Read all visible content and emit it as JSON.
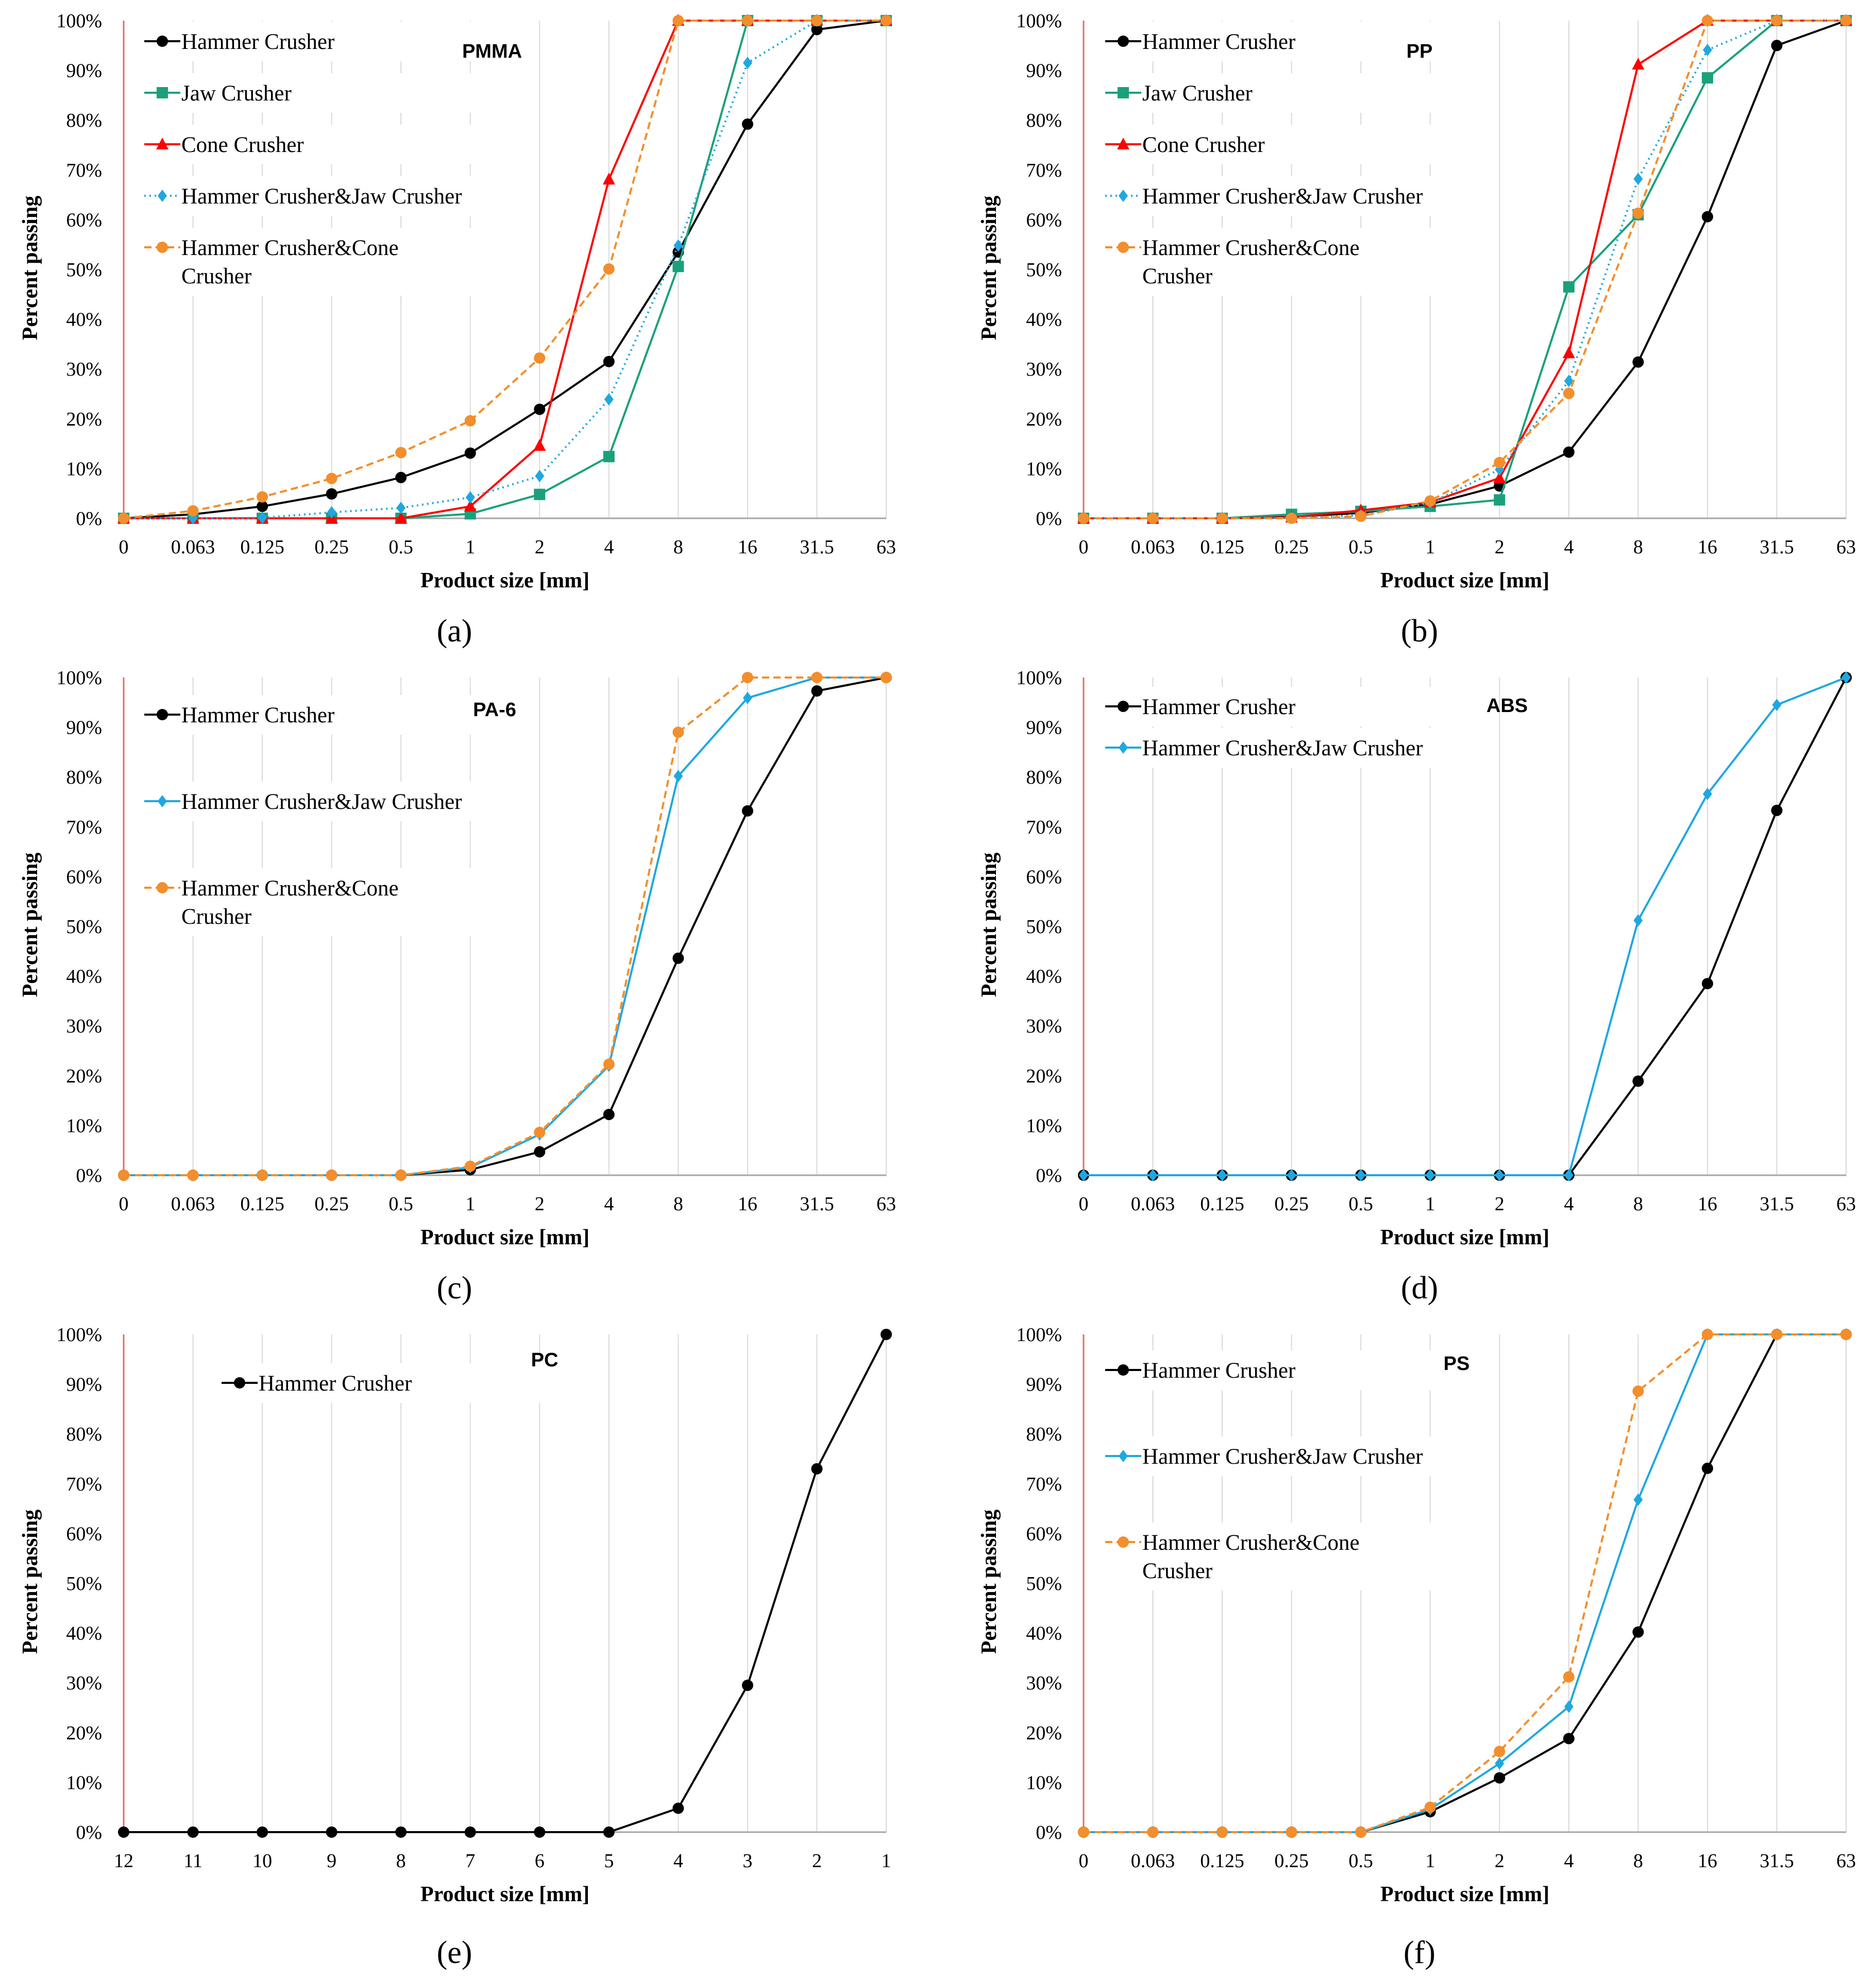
{
  "chart_data": [
    {
      "type": "line",
      "title": "PMMA",
      "caption": "(a)",
      "xlabel": "Product size [mm]",
      "ylabel": "Percent passing",
      "ylim": [
        0,
        100
      ],
      "ytick_labels": [
        "0%",
        "10%",
        "20%",
        "30%",
        "40%",
        "50%",
        "60%",
        "70%",
        "80%",
        "90%",
        "100%"
      ],
      "categories": [
        "0",
        "0.063",
        "0.125",
        "0.25",
        "0.5",
        "1",
        "2",
        "4",
        "8",
        "16",
        "31.5",
        "63"
      ],
      "series": [
        {
          "name": "Hammer Crusher",
          "color": "#000000",
          "marker": "circle",
          "dash": "solid",
          "values": [
            0,
            0.8,
            2.4,
            4.9,
            8.2,
            13.1,
            21.9,
            31.5,
            53.5,
            79.2,
            98.2,
            100
          ]
        },
        {
          "name": "Jaw Crusher",
          "color": "#1aa07a",
          "marker": "square",
          "dash": "solid",
          "values": [
            0,
            0,
            0,
            0,
            0,
            0.9,
            4.8,
            12.4,
            50.6,
            100,
            100,
            100
          ]
        },
        {
          "name": "Cone Crusher",
          "color": "#ff0000",
          "marker": "triangle",
          "dash": "solid",
          "values": [
            0,
            0,
            0,
            0,
            0,
            2.4,
            14.6,
            68.1,
            100,
            100,
            100,
            100
          ]
        },
        {
          "name": "Hammer Crusher&Jaw Crusher",
          "color": "#1fa8e0",
          "marker": "diamond",
          "dash": "dot",
          "values": [
            0,
            0,
            0.1,
            1.2,
            2.1,
            4.2,
            8.5,
            23.9,
            54.8,
            91.5,
            100,
            100
          ]
        },
        {
          "name": "Hammer Crusher&Cone Crusher",
          "color": "#f28e2b",
          "marker": "circle",
          "dash": "dash",
          "values": [
            0,
            1.5,
            4.3,
            8.0,
            13.2,
            19.6,
            32.2,
            50.1,
            100,
            100,
            100,
            100
          ]
        }
      ]
    },
    {
      "type": "line",
      "title": "PP",
      "caption": "(b)",
      "xlabel": "Product size [mm]",
      "ylabel": "Percent passing",
      "ylim": [
        0,
        100
      ],
      "ytick_labels": [
        "0%",
        "10%",
        "20%",
        "30%",
        "40%",
        "50%",
        "60%",
        "70%",
        "80%",
        "90%",
        "100%"
      ],
      "categories": [
        "0",
        "0.063",
        "0.125",
        "0.25",
        "0.5",
        "1",
        "2",
        "4",
        "8",
        "16",
        "31.5",
        "63"
      ],
      "series": [
        {
          "name": "Hammer Crusher",
          "color": "#000000",
          "marker": "circle",
          "dash": "solid",
          "values": [
            0,
            0,
            0,
            0.3,
            1.1,
            2.8,
            6.5,
            13.3,
            31.4,
            60.6,
            95.0,
            100
          ]
        },
        {
          "name": "Jaw Crusher",
          "color": "#1aa07a",
          "marker": "square",
          "dash": "solid",
          "values": [
            0,
            0,
            0,
            0.8,
            1.4,
            2.4,
            3.7,
            46.5,
            61.0,
            88.5,
            100,
            100
          ]
        },
        {
          "name": "Cone Crusher",
          "color": "#ff0000",
          "marker": "triangle",
          "dash": "solid",
          "values": [
            0,
            0,
            0,
            0.2,
            1.6,
            3.2,
            8.1,
            33.2,
            91.2,
            100,
            100,
            100
          ]
        },
        {
          "name": "Hammer Crusher&Jaw Crusher",
          "color": "#1fa8e0",
          "marker": "diamond",
          "dash": "dot",
          "values": [
            0,
            0,
            0,
            0.1,
            0.6,
            3.1,
            9.8,
            27.6,
            68.2,
            94.1,
            100,
            100
          ]
        },
        {
          "name": "Hammer Crusher&Cone Crusher",
          "color": "#f28e2b",
          "marker": "circle",
          "dash": "dash",
          "values": [
            0,
            0,
            0,
            0,
            0.4,
            3.5,
            11.2,
            25.1,
            61.3,
            100,
            100,
            100
          ]
        }
      ]
    },
    {
      "type": "line",
      "title": "PA-6",
      "caption": "(c)",
      "xlabel": "Product size [mm]",
      "ylabel": "Percent passing",
      "ylim": [
        0,
        100
      ],
      "ytick_labels": [
        "0%",
        "10%",
        "20%",
        "30%",
        "40%",
        "50%",
        "60%",
        "70%",
        "80%",
        "90%",
        "100%"
      ],
      "categories": [
        "0",
        "0.063",
        "0.125",
        "0.25",
        "0.5",
        "1",
        "2",
        "4",
        "8",
        "16",
        "31.5",
        "63"
      ],
      "series": [
        {
          "name": "Hammer Crusher",
          "color": "#000000",
          "marker": "circle",
          "dash": "solid",
          "values": [
            0,
            0,
            0,
            0,
            0,
            1.1,
            4.7,
            12.2,
            43.6,
            73.2,
            97.3,
            100
          ]
        },
        {
          "name": "Hammer Crusher&Jaw Crusher",
          "color": "#1fa8e0",
          "marker": "diamond",
          "dash": "solid",
          "values": [
            0,
            0,
            0,
            0,
            0,
            1.6,
            8.2,
            22.0,
            80.2,
            95.9,
            100,
            100
          ]
        },
        {
          "name": "Hammer Crusher&Cone Crusher",
          "color": "#f28e2b",
          "marker": "circle",
          "dash": "dash",
          "values": [
            0,
            0,
            0,
            0,
            0,
            1.8,
            8.6,
            22.3,
            89.0,
            100,
            100,
            100
          ]
        }
      ]
    },
    {
      "type": "line",
      "title": "ABS",
      "caption": "(d)",
      "xlabel": "Product size [mm]",
      "ylabel": "Percent passing",
      "ylim": [
        0,
        100
      ],
      "ytick_labels": [
        "0%",
        "10%",
        "20%",
        "30%",
        "40%",
        "50%",
        "60%",
        "70%",
        "80%",
        "90%",
        "100%"
      ],
      "categories": [
        "0",
        "0.063",
        "0.125",
        "0.25",
        "0.5",
        "1",
        "2",
        "4",
        "8",
        "16",
        "31.5",
        "63"
      ],
      "series": [
        {
          "name": "Hammer Crusher",
          "color": "#000000",
          "marker": "circle",
          "dash": "solid",
          "values": [
            0,
            0,
            0,
            0,
            0,
            0,
            0,
            0,
            18.9,
            38.5,
            73.3,
            100
          ]
        },
        {
          "name": "Hammer Crusher&Jaw Crusher",
          "color": "#1fa8e0",
          "marker": "diamond",
          "dash": "solid",
          "values": [
            0,
            0,
            0,
            0,
            0,
            0,
            0,
            0,
            51.2,
            76.6,
            94.5,
            100
          ]
        }
      ]
    },
    {
      "type": "line",
      "title": "PC",
      "caption": "(e)",
      "xlabel": "Product size [mm]",
      "ylabel": "Percent passing",
      "ylim": [
        0,
        100
      ],
      "ytick_labels": [
        "0%",
        "10%",
        "20%",
        "30%",
        "40%",
        "50%",
        "60%",
        "70%",
        "80%",
        "90%",
        "100%"
      ],
      "categories": [
        "12",
        "11",
        "10",
        "9",
        "8",
        "7",
        "6",
        "5",
        "4",
        "3",
        "2",
        "1"
      ],
      "series": [
        {
          "name": "Hammer Crusher",
          "color": "#000000",
          "marker": "circle",
          "dash": "solid",
          "values": [
            0,
            0,
            0,
            0,
            0,
            0,
            0,
            0,
            4.8,
            29.5,
            73.0,
            100
          ]
        }
      ]
    },
    {
      "type": "line",
      "title": "PS",
      "caption": "(f)",
      "xlabel": "Product size [mm]",
      "ylabel": "Percent passing",
      "ylim": [
        0,
        100
      ],
      "ytick_labels": [
        "0%",
        "10%",
        "20%",
        "30%",
        "40%",
        "50%",
        "60%",
        "70%",
        "80%",
        "90%",
        "100%"
      ],
      "categories": [
        "0",
        "0.063",
        "0.125",
        "0.25",
        "0.5",
        "1",
        "2",
        "4",
        "8",
        "16",
        "31.5",
        "63"
      ],
      "series": [
        {
          "name": "Hammer Crusher",
          "color": "#000000",
          "marker": "circle",
          "dash": "solid",
          "values": [
            0,
            0,
            0,
            0,
            0,
            4.1,
            10.9,
            18.8,
            40.2,
            73.1,
            100,
            100
          ]
        },
        {
          "name": "Hammer Crusher&Jaw Crusher",
          "color": "#1fa8e0",
          "marker": "diamond",
          "dash": "solid",
          "values": [
            0,
            0,
            0,
            0,
            0,
            4.6,
            13.8,
            25.2,
            66.8,
            100,
            100,
            100
          ]
        },
        {
          "name": "Hammer Crusher&Cone Crusher",
          "color": "#f28e2b",
          "marker": "circle",
          "dash": "dash",
          "values": [
            0,
            0,
            0,
            0,
            0,
            5.0,
            16.2,
            31.2,
            88.6,
            100,
            100,
            100
          ]
        }
      ]
    }
  ]
}
